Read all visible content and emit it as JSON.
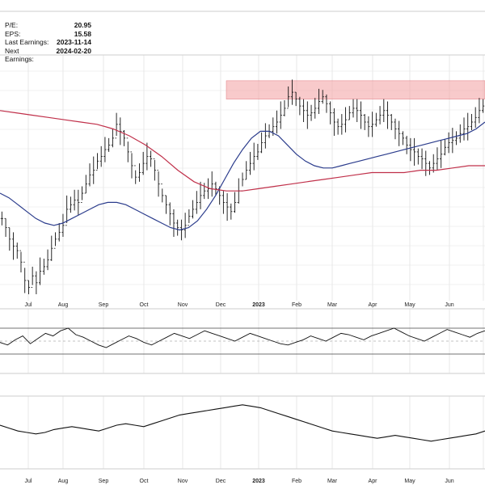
{
  "fundamentals": [
    {
      "label": "P/E:",
      "value": "20.95"
    },
    {
      "label": "EPS:",
      "value": "15.58"
    },
    {
      "label": "Last Earnings:",
      "value": "2023-11-14"
    },
    {
      "label": "Next Earnings:",
      "value": "2024-02-20"
    }
  ],
  "chart_data": {
    "type": "line",
    "title": "",
    "x_tick_labels": [
      "Jul",
      "Aug",
      "Sep",
      "Oct",
      "Nov",
      "Dec",
      "2023",
      "Feb",
      "Mar",
      "Apr",
      "May",
      "Jun"
    ],
    "resistance_zone": {
      "x_start": "Dec",
      "x_end": "right edge",
      "color": "#f4a6a8"
    },
    "price_panel": {
      "style": "ohlc-bars",
      "bar_color": "#111111",
      "close": [
        66,
        58,
        48,
        42,
        38,
        28,
        12,
        6,
        16,
        10,
        20,
        24,
        30,
        40,
        48,
        54,
        60,
        74,
        78,
        82,
        80,
        88,
        96,
        104,
        108,
        116,
        120,
        126,
        130,
        136,
        148,
        142,
        136,
        124,
        112,
        102,
        106,
        114,
        120,
        118,
        108,
        96,
        86,
        78,
        70,
        62,
        58,
        56,
        60,
        68,
        74,
        80,
        86,
        90,
        92,
        96,
        92,
        86,
        80,
        76,
        72,
        80,
        90,
        100,
        108,
        114,
        120,
        124,
        132,
        138,
        142,
        146,
        150,
        156,
        162,
        172,
        176,
        170,
        164,
        160,
        156,
        158,
        162,
        168,
        172,
        166,
        158,
        150,
        146,
        148,
        152,
        158,
        162,
        160,
        156,
        150,
        146,
        148,
        152,
        156,
        160,
        156,
        150,
        144,
        140,
        136,
        130,
        126,
        124,
        120,
        118,
        114,
        110,
        114,
        118,
        122,
        128,
        132,
        134,
        136,
        140,
        144,
        146,
        150,
        154,
        160,
        164
      ],
      "series": [
        {
          "name": "ma_50",
          "color": "#2b3c8c",
          "values": [
            88,
            84,
            78,
            72,
            66,
            62,
            60,
            62,
            66,
            70,
            74,
            78,
            80,
            80,
            78,
            74,
            70,
            66,
            62,
            58,
            56,
            58,
            64,
            74,
            86,
            100,
            114,
            126,
            136,
            142,
            142,
            138,
            130,
            122,
            116,
            112,
            110,
            110,
            112,
            114,
            116,
            118,
            120,
            122,
            124,
            126,
            128,
            130,
            132,
            134,
            136,
            138,
            140,
            144,
            150
          ]
        },
        {
          "name": "ma_200",
          "color": "#c0304a",
          "values": [
            160,
            158,
            156,
            154,
            152,
            150,
            148,
            144,
            138,
            130,
            120,
            108,
            98,
            92,
            90,
            90,
            92,
            94,
            96,
            98,
            100,
            102,
            104,
            106,
            106,
            106,
            108,
            108,
            110,
            112,
            112
          ]
        }
      ],
      "resistance_low": 170,
      "resistance_high": 186
    },
    "indicator_panel_1": {
      "series": [
        {
          "color": "#111111",
          "values": [
            48,
            44,
            52,
            58,
            46,
            54,
            62,
            58,
            66,
            70,
            60,
            56,
            50,
            44,
            40,
            46,
            52,
            58,
            54,
            48,
            44,
            50,
            56,
            62,
            58,
            54,
            60,
            66,
            62,
            58,
            54,
            50,
            56,
            62,
            58,
            54,
            50,
            46,
            44,
            48,
            52,
            58,
            54,
            50,
            56,
            62,
            60,
            56,
            52,
            58,
            62,
            66,
            70,
            64,
            58,
            54,
            50,
            56,
            62,
            68,
            64,
            60,
            56,
            62,
            66
          ]
        }
      ],
      "upper_line": 70,
      "lower_line": 30,
      "mid_line": 50
    },
    "indicator_panel_2": {
      "series": [
        {
          "color": "#111111",
          "values": [
            60,
            56,
            52,
            50,
            48,
            50,
            54,
            56,
            58,
            56,
            54,
            52,
            56,
            60,
            62,
            60,
            58,
            62,
            66,
            70,
            74,
            76,
            78,
            80,
            82,
            84,
            86,
            88,
            86,
            84,
            80,
            76,
            72,
            68,
            64,
            60,
            56,
            52,
            50,
            48,
            46,
            44,
            42,
            44,
            46,
            44,
            42,
            40,
            38,
            40,
            42,
            44,
            46,
            48,
            52
          ]
        }
      ]
    }
  }
}
